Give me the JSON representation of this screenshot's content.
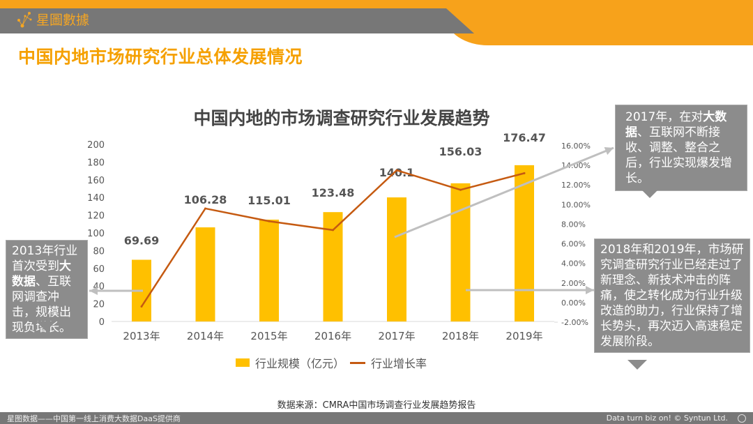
{
  "header": {
    "brand": "星圖數據",
    "title": "中国内地市场研究行业总体发展情况"
  },
  "chart_data": {
    "type": "bar",
    "title": "中国内地的市场调查研究行业发展趋势",
    "categories": [
      "2013年",
      "2014年",
      "2015年",
      "2016年",
      "2017年",
      "2018年",
      "2019年"
    ],
    "series": [
      {
        "name": "行业规模（亿元）",
        "type": "bar",
        "axis": "left",
        "values": [
          69.69,
          106.28,
          115.01,
          123.48,
          140.1,
          156.03,
          176.47
        ],
        "labels": [
          "69.69",
          "106.28",
          "115.01",
          "123.48",
          "140.1",
          "156.03",
          "176.47"
        ]
      },
      {
        "name": "行业增长率",
        "type": "line",
        "axis": "right",
        "values": [
          -0.4,
          9.6,
          8.3,
          7.4,
          13.5,
          11.5,
          13.2
        ]
      }
    ],
    "ylim": [
      0,
      200
    ],
    "yticks": [
      "0",
      "20",
      "40",
      "60",
      "80",
      "100",
      "120",
      "140",
      "160",
      "180",
      "200"
    ],
    "y2lim": [
      -2,
      16
    ],
    "y2ticks": [
      "-2.00%",
      "0.00%",
      "2.00%",
      "4.00%",
      "6.00%",
      "8.00%",
      "10.00%",
      "12.00%",
      "14.00%",
      "16.00%"
    ],
    "legend_position": "bottom",
    "colors": {
      "bar": "#ffc000",
      "line": "#c55a11"
    }
  },
  "legend": {
    "bar": "行业规模（亿元）",
    "line": "行业增长率"
  },
  "callouts": {
    "c1": {
      "pre": "2013年行业首次受到",
      "bold": "大数据",
      "post": "、互联网调查冲击，规模出现负增长。"
    },
    "c2": {
      "pre": "2017年，在对",
      "bold": "大数据",
      "post": "、互联网不断接收、调整、整合之后，行业实现爆发增长。"
    },
    "c3": {
      "text": "2018年和2019年，市场研究调查研究行业已经走过了新理念、新技术冲击的阵痛，使之转化成为行业升级改造的助力，行业保持了增长势头，再次迈入高速稳定发展阶段。"
    }
  },
  "source": "数据来源：CMRA中国市场调查行业发展趋势报告",
  "footer": {
    "left": "星图数据——中国第一线上消费大数据DaaS提供商",
    "right": "Data turn biz on! © Syntun Ltd."
  }
}
